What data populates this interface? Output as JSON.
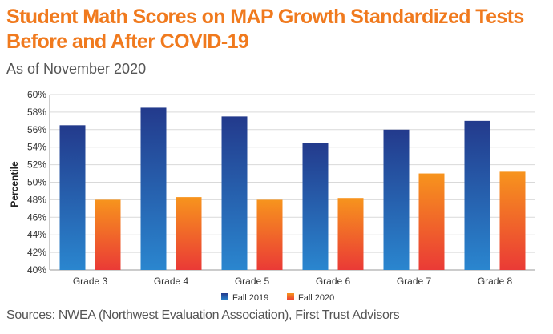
{
  "header": {
    "title_line1": "Student Math Scores on MAP Growth Standardized Tests",
    "title_line2": "Before and After COVID-19",
    "subtitle": "As of November 2020"
  },
  "footer": {
    "source": "Sources: NWEA (Northwest Evaluation Association), First Trust Advisors"
  },
  "colors": {
    "title": "#f07a1e",
    "fall2019_top": "#233a8c",
    "fall2019_bottom": "#2a86cf",
    "fall2020_top": "#f7941d",
    "fall2020_bottom": "#ea3a36",
    "grid": "#d9d9d9"
  },
  "chart_data": {
    "type": "bar",
    "title": "Student Math Scores on MAP Growth Standardized Tests Before and After COVID-19",
    "subtitle": "As of November 2020",
    "xlabel": "",
    "ylabel": "Percentile",
    "ylim": [
      40,
      60
    ],
    "ytick_step": 2,
    "ytick_labels": [
      "40%",
      "42%",
      "44%",
      "46%",
      "48%",
      "50%",
      "52%",
      "54%",
      "56%",
      "58%",
      "60%"
    ],
    "grid": true,
    "legend_position": "bottom",
    "categories": [
      "Grade 3",
      "Grade 4",
      "Grade 5",
      "Grade 6",
      "Grade 7",
      "Grade 8"
    ],
    "series": [
      {
        "name": "Fall 2019",
        "values": [
          56.5,
          58.5,
          57.5,
          54.5,
          56.0,
          57.0
        ]
      },
      {
        "name": "Fall 2020",
        "values": [
          48.0,
          48.3,
          48.0,
          48.2,
          51.0,
          51.2
        ]
      }
    ]
  }
}
